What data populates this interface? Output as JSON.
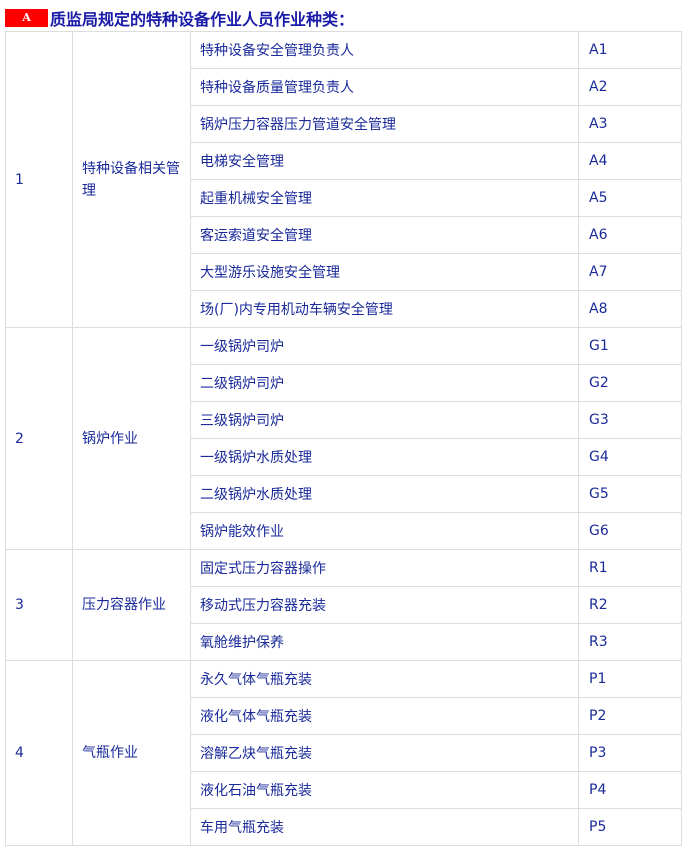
{
  "header": {
    "badge": "A",
    "title": "质监局规定的特种设备作业人员作业种类："
  },
  "groups": [
    {
      "no": "1",
      "name": "特种设备相关管理",
      "items": [
        [
          "特种设备安全管理负责人",
          "A1"
        ],
        [
          "特种设备质量管理负责人",
          "A2"
        ],
        [
          "锅炉压力容器压力管道安全管理",
          "A3"
        ],
        [
          "电梯安全管理",
          "A4"
        ],
        [
          "起重机械安全管理",
          "A5"
        ],
        [
          "客运索道安全管理",
          "A6"
        ],
        [
          "大型游乐设施安全管理",
          "A7"
        ],
        [
          "场(厂)内专用机动车辆安全管理",
          "A8"
        ]
      ]
    },
    {
      "no": "2",
      "name": "锅炉作业",
      "items": [
        [
          "一级锅炉司炉",
          "G1"
        ],
        [
          "二级锅炉司炉",
          "G2"
        ],
        [
          "三级锅炉司炉",
          "G3"
        ],
        [
          "一级锅炉水质处理",
          "G4"
        ],
        [
          "二级锅炉水质处理",
          "G5"
        ],
        [
          "锅炉能效作业",
          "G6"
        ]
      ]
    },
    {
      "no": "3",
      "name": "压力容器作业",
      "items": [
        [
          "固定式压力容器操作",
          "R1"
        ],
        [
          "移动式压力容器充装",
          "R2"
        ],
        [
          "氧舱维护保养",
          "R3"
        ]
      ]
    },
    {
      "no": "4",
      "name": "气瓶作业",
      "items": [
        [
          "永久气体气瓶充装",
          "P1"
        ],
        [
          "液化气体气瓶充装",
          "P2"
        ],
        [
          "溶解乙炔气瓶充装",
          "P3"
        ],
        [
          "液化石油气瓶充装",
          "P4"
        ],
        [
          "车用气瓶充装",
          "P5"
        ]
      ]
    }
  ]
}
